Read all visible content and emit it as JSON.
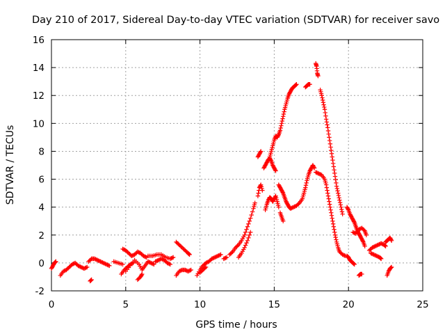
{
  "chart_data": {
    "type": "scatter",
    "title": "Day 210 of 2017, Sidereal Day-to-day VTEC variation (SDTVAR) for receiver savo",
    "xlabel": "GPS time / hours",
    "ylabel": "SDTVAR / TECUs",
    "xlim": [
      0,
      25
    ],
    "ylim": [
      -2,
      16
    ],
    "xticks": [
      0,
      5,
      10,
      15,
      20,
      25
    ],
    "yticks": [
      -2,
      0,
      2,
      4,
      6,
      8,
      10,
      12,
      14,
      16
    ],
    "xtick_labels": [
      "0",
      "5",
      "10",
      "15",
      "20",
      "25"
    ],
    "ytick_labels": [
      "-2",
      "0",
      "2",
      "4",
      "6",
      "8",
      "10",
      "12",
      "14",
      "16"
    ],
    "grid": true,
    "marker": "+",
    "series": [
      {
        "name": "SDTVAR",
        "color": "#ff0000",
        "segments": [
          [
            [
              0.0,
              -0.4
            ],
            [
              0.1,
              -0.2
            ],
            [
              0.2,
              0.0
            ],
            [
              0.3,
              0.1
            ]
          ],
          [
            [
              0.6,
              -0.9
            ],
            [
              0.8,
              -0.6
            ],
            [
              1.0,
              -0.5
            ],
            [
              1.2,
              -0.3
            ],
            [
              1.4,
              -0.1
            ],
            [
              1.6,
              0.0
            ],
            [
              1.8,
              -0.2
            ],
            [
              2.0,
              -0.3
            ],
            [
              2.2,
              -0.4
            ],
            [
              2.4,
              -0.3
            ]
          ],
          [
            [
              2.6,
              -1.3
            ],
            [
              2.7,
              -1.2
            ]
          ],
          [
            [
              2.5,
              0.1
            ],
            [
              2.7,
              0.3
            ],
            [
              2.9,
              0.3
            ],
            [
              3.1,
              0.2
            ],
            [
              3.3,
              0.1
            ],
            [
              3.5,
              0.0
            ],
            [
              3.7,
              -0.1
            ],
            [
              3.9,
              -0.2
            ]
          ],
          [
            [
              4.2,
              0.1
            ],
            [
              4.5,
              0.0
            ],
            [
              4.8,
              -0.1
            ]
          ],
          [
            [
              4.7,
              -0.8
            ],
            [
              4.9,
              -0.5
            ],
            [
              5.1,
              -0.3
            ],
            [
              5.3,
              -0.1
            ],
            [
              5.5,
              0.0
            ]
          ],
          [
            [
              4.8,
              1.0
            ],
            [
              5.0,
              0.9
            ],
            [
              5.2,
              0.7
            ],
            [
              5.4,
              0.5
            ],
            [
              5.6,
              0.6
            ],
            [
              5.8,
              0.8
            ],
            [
              6.0,
              0.7
            ],
            [
              6.2,
              0.5
            ],
            [
              6.4,
              0.4
            ]
          ],
          [
            [
              5.0,
              -0.6
            ],
            [
              5.3,
              -0.2
            ],
            [
              5.6,
              0.2
            ],
            [
              5.9,
              -0.1
            ],
            [
              6.1,
              -0.5
            ],
            [
              6.3,
              -0.2
            ],
            [
              6.5,
              0.1
            ],
            [
              6.7,
              0.0
            ],
            [
              6.9,
              -0.1
            ]
          ],
          [
            [
              5.8,
              -1.2
            ],
            [
              6.0,
              -1.0
            ],
            [
              6.1,
              -0.8
            ]
          ],
          [
            [
              6.5,
              0.5
            ],
            [
              6.8,
              0.5
            ],
            [
              7.1,
              0.6
            ],
            [
              7.4,
              0.6
            ],
            [
              7.7,
              0.4
            ],
            [
              8.0,
              0.3
            ],
            [
              8.2,
              0.4
            ]
          ],
          [
            [
              7.0,
              0.1
            ],
            [
              7.2,
              0.2
            ],
            [
              7.4,
              0.3
            ],
            [
              7.6,
              0.2
            ],
            [
              7.8,
              0.0
            ],
            [
              8.0,
              -0.1
            ]
          ],
          [
            [
              8.4,
              1.5
            ],
            [
              8.6,
              1.3
            ],
            [
              8.8,
              1.1
            ],
            [
              9.0,
              0.9
            ],
            [
              9.2,
              0.7
            ],
            [
              9.3,
              0.6
            ]
          ],
          [
            [
              8.4,
              -0.9
            ],
            [
              8.6,
              -0.6
            ],
            [
              8.8,
              -0.5
            ],
            [
              9.0,
              -0.5
            ],
            [
              9.2,
              -0.6
            ],
            [
              9.4,
              -0.5
            ]
          ],
          [
            [
              9.8,
              -0.9
            ],
            [
              10.0,
              -0.5
            ],
            [
              10.2,
              -0.2
            ],
            [
              10.4,
              0.0
            ],
            [
              10.6,
              0.1
            ],
            [
              10.8,
              0.3
            ],
            [
              11.0,
              0.4
            ],
            [
              11.2,
              0.5
            ],
            [
              11.4,
              0.6
            ]
          ],
          [
            [
              10.0,
              -0.7
            ],
            [
              10.2,
              -0.5
            ],
            [
              10.4,
              -0.3
            ]
          ],
          [
            [
              11.6,
              0.3
            ],
            [
              11.8,
              0.4
            ]
          ],
          [
            [
              12.0,
              0.6
            ],
            [
              12.2,
              0.8
            ],
            [
              12.4,
              1.1
            ],
            [
              12.6,
              1.3
            ],
            [
              12.8,
              1.6
            ],
            [
              13.0,
              2.0
            ],
            [
              13.2,
              2.6
            ],
            [
              13.4,
              3.2
            ],
            [
              13.6,
              3.9
            ],
            [
              13.7,
              4.3
            ]
          ],
          [
            [
              12.6,
              0.4
            ],
            [
              12.8,
              0.7
            ],
            [
              13.0,
              1.1
            ],
            [
              13.2,
              1.6
            ],
            [
              13.4,
              2.2
            ]
          ],
          [
            [
              13.9,
              4.8
            ],
            [
              14.0,
              5.4
            ],
            [
              14.1,
              5.6
            ],
            [
              14.2,
              5.2
            ]
          ],
          [
            [
              13.9,
              7.6
            ],
            [
              14.0,
              7.8
            ],
            [
              14.1,
              8.0
            ]
          ],
          [
            [
              14.3,
              6.8
            ],
            [
              14.4,
              7.0
            ],
            [
              14.5,
              7.2
            ],
            [
              14.6,
              7.4
            ],
            [
              14.7,
              7.5
            ],
            [
              14.8,
              7.3
            ],
            [
              14.9,
              7.0
            ],
            [
              15.0,
              6.8
            ],
            [
              15.1,
              6.6
            ]
          ],
          [
            [
              14.4,
              3.8
            ],
            [
              14.5,
              4.2
            ],
            [
              14.6,
              4.5
            ],
            [
              14.7,
              4.7
            ],
            [
              14.8,
              4.6
            ],
            [
              14.9,
              4.4
            ],
            [
              15.0,
              4.6
            ],
            [
              15.1,
              4.8
            ],
            [
              15.2,
              4.4
            ],
            [
              15.3,
              4.0
            ]
          ],
          [
            [
              14.7,
              7.6
            ],
            [
              14.8,
              8.0
            ],
            [
              14.9,
              8.4
            ],
            [
              15.0,
              8.8
            ],
            [
              15.1,
              9.1
            ],
            [
              15.2,
              9.0
            ],
            [
              15.3,
              9.2
            ],
            [
              15.4,
              9.5
            ],
            [
              15.5,
              10.0
            ],
            [
              15.6,
              10.5
            ],
            [
              15.7,
              11.0
            ],
            [
              15.8,
              11.4
            ],
            [
              15.9,
              11.8
            ],
            [
              16.0,
              12.1
            ],
            [
              16.1,
              12.3
            ],
            [
              16.2,
              12.5
            ],
            [
              16.3,
              12.6
            ],
            [
              16.4,
              12.7
            ],
            [
              16.5,
              12.8
            ]
          ],
          [
            [
              15.3,
              5.6
            ],
            [
              15.4,
              5.4
            ],
            [
              15.5,
              5.2
            ],
            [
              15.6,
              5.0
            ],
            [
              15.7,
              4.7
            ],
            [
              15.8,
              4.4
            ],
            [
              15.9,
              4.2
            ],
            [
              16.0,
              4.0
            ],
            [
              16.1,
              3.9
            ],
            [
              16.3,
              4.0
            ],
            [
              16.5,
              4.1
            ],
            [
              16.7,
              4.3
            ],
            [
              16.9,
              4.6
            ],
            [
              17.0,
              5.0
            ],
            [
              17.1,
              5.4
            ],
            [
              17.2,
              5.9
            ],
            [
              17.3,
              6.3
            ],
            [
              17.4,
              6.6
            ],
            [
              17.5,
              6.8
            ],
            [
              17.6,
              7.0
            ],
            [
              17.7,
              6.8
            ]
          ],
          [
            [
              15.4,
              3.6
            ],
            [
              15.5,
              3.3
            ],
            [
              15.6,
              3.0
            ]
          ],
          [
            [
              17.1,
              12.6
            ],
            [
              17.2,
              12.7
            ],
            [
              17.3,
              12.8
            ],
            [
              17.4,
              12.8
            ]
          ],
          [
            [
              17.8,
              14.3
            ],
            [
              17.85,
              14.1
            ],
            [
              17.9,
              13.6
            ],
            [
              17.95,
              13.4
            ]
          ],
          [
            [
              17.8,
              6.5
            ],
            [
              18.0,
              6.4
            ],
            [
              18.2,
              6.3
            ],
            [
              18.4,
              6.0
            ],
            [
              18.5,
              5.6
            ],
            [
              18.6,
              5.0
            ],
            [
              18.7,
              4.4
            ],
            [
              18.8,
              3.8
            ],
            [
              18.9,
              3.2
            ],
            [
              19.0,
              2.6
            ],
            [
              19.1,
              2.0
            ],
            [
              19.2,
              1.5
            ],
            [
              19.3,
              1.1
            ],
            [
              19.4,
              0.8
            ],
            [
              19.6,
              0.6
            ],
            [
              19.8,
              0.5
            ]
          ],
          [
            [
              18.1,
              12.4
            ],
            [
              18.2,
              12.0
            ],
            [
              18.3,
              11.5
            ],
            [
              18.4,
              11.0
            ],
            [
              18.5,
              10.3
            ],
            [
              18.6,
              9.7
            ],
            [
              18.7,
              9.0
            ],
            [
              18.8,
              8.3
            ],
            [
              18.9,
              7.6
            ],
            [
              19.0,
              6.9
            ],
            [
              19.1,
              6.2
            ],
            [
              19.2,
              5.5
            ],
            [
              19.3,
              5.0
            ],
            [
              19.4,
              4.5
            ],
            [
              19.5,
              4.0
            ],
            [
              19.6,
              3.5
            ]
          ],
          [
            [
              19.9,
              0.5
            ],
            [
              20.0,
              0.4
            ],
            [
              20.1,
              0.2
            ],
            [
              20.2,
              0.1
            ],
            [
              20.3,
              0.0
            ],
            [
              20.4,
              -0.1
            ]
          ],
          [
            [
              19.9,
              4.0
            ],
            [
              20.0,
              3.8
            ],
            [
              20.1,
              3.5
            ],
            [
              20.2,
              3.3
            ],
            [
              20.3,
              3.1
            ],
            [
              20.4,
              2.9
            ],
            [
              20.5,
              2.6
            ],
            [
              20.6,
              2.3
            ],
            [
              20.7,
              2.1
            ],
            [
              20.8,
              1.9
            ],
            [
              20.9,
              1.7
            ],
            [
              21.0,
              1.5
            ],
            [
              21.1,
              1.2
            ]
          ],
          [
            [
              20.3,
              2.2
            ],
            [
              20.5,
              2.1
            ],
            [
              20.7,
              2.4
            ],
            [
              20.9,
              2.5
            ],
            [
              21.1,
              2.3
            ],
            [
              21.2,
              2.0
            ]
          ],
          [
            [
              20.7,
              -0.9
            ],
            [
              20.8,
              -0.8
            ],
            [
              20.9,
              -0.8
            ]
          ],
          [
            [
              21.4,
              0.9
            ],
            [
              21.6,
              1.1
            ],
            [
              21.8,
              1.2
            ],
            [
              22.0,
              1.3
            ],
            [
              22.2,
              1.4
            ],
            [
              22.4,
              1.3
            ],
            [
              22.5,
              1.2
            ]
          ],
          [
            [
              21.5,
              0.7
            ],
            [
              21.7,
              0.6
            ],
            [
              21.9,
              0.5
            ],
            [
              22.1,
              0.4
            ],
            [
              22.2,
              0.3
            ]
          ],
          [
            [
              22.5,
              1.5
            ],
            [
              22.6,
              1.6
            ],
            [
              22.7,
              1.7
            ],
            [
              22.8,
              1.8
            ],
            [
              22.9,
              1.6
            ]
          ],
          [
            [
              22.6,
              -0.9
            ],
            [
              22.7,
              -0.6
            ],
            [
              22.8,
              -0.4
            ],
            [
              22.9,
              -0.3
            ]
          ]
        ]
      }
    ]
  }
}
